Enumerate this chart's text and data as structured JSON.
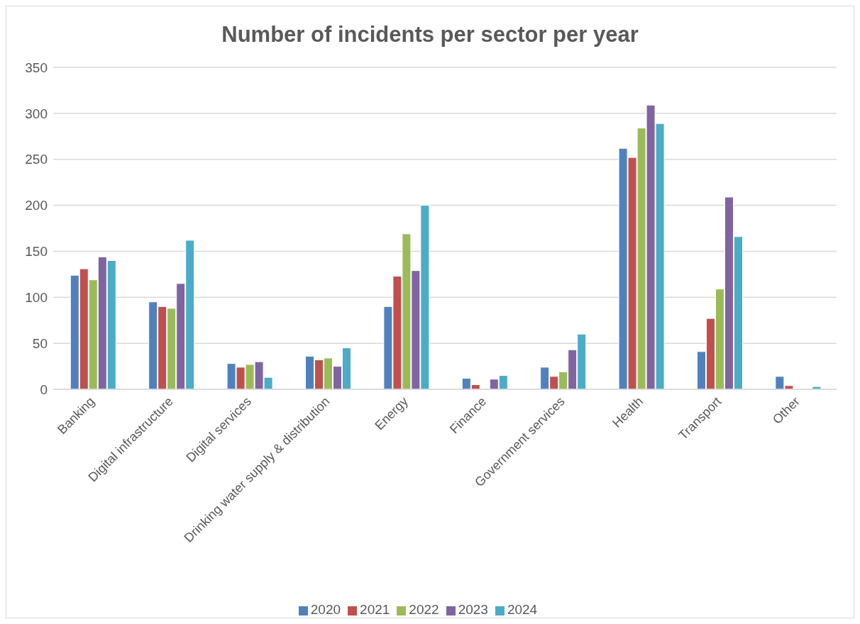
{
  "chart_data": {
    "type": "bar",
    "title": "Number of incidents per sector per year",
    "categories": [
      "Banking",
      "Digital infrastructure",
      "Digital services",
      "Drinking water supply & distribution",
      "Energy",
      "Finance",
      "Government services",
      "Health",
      "Transport",
      "Other"
    ],
    "series": [
      {
        "name": "2020",
        "color": "#4f81bd",
        "values": [
          124,
          95,
          28,
          36,
          90,
          12,
          24,
          262,
          41,
          14
        ]
      },
      {
        "name": "2021",
        "color": "#c0504d",
        "values": [
          131,
          90,
          24,
          32,
          123,
          5,
          14,
          252,
          77,
          4
        ]
      },
      {
        "name": "2022",
        "color": "#9bbb59",
        "values": [
          119,
          88,
          27,
          34,
          169,
          null,
          19,
          284,
          109,
          null
        ]
      },
      {
        "name": "2023",
        "color": "#8064a2",
        "values": [
          144,
          115,
          30,
          25,
          129,
          11,
          43,
          309,
          209,
          null
        ]
      },
      {
        "name": "2024",
        "color": "#4bacc6",
        "values": [
          140,
          162,
          13,
          45,
          200,
          15,
          60,
          289,
          166,
          3
        ]
      }
    ],
    "ylim": [
      0,
      350
    ],
    "yticks": [
      0,
      50,
      100,
      150,
      200,
      250,
      300,
      350
    ],
    "grid": "y",
    "legend": "bottom"
  }
}
